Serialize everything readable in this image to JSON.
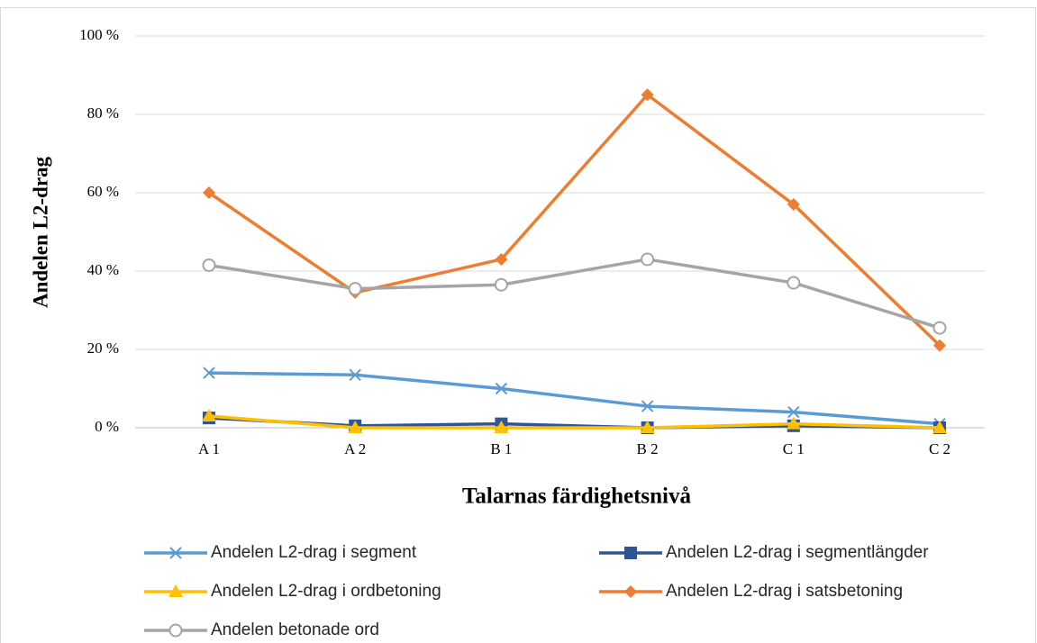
{
  "chart_data": {
    "type": "line",
    "x_label": "Talarnas färdighetsnivå",
    "y_label": "Andelen L2-drag",
    "categories": [
      "A 1",
      "A 2",
      "B 1",
      "B 2",
      "C 1",
      "C 2"
    ],
    "series": [
      {
        "name": "Andelen L2-drag i segment",
        "color": "#5b9bd5",
        "marker": "x",
        "values": [
          14,
          13.5,
          10,
          5.5,
          4,
          1
        ]
      },
      {
        "name": "Andelen L2-drag i segmentlängder",
        "color": "#2f5597",
        "marker": "square",
        "values": [
          2.5,
          0.5,
          1,
          0,
          0.5,
          0
        ]
      },
      {
        "name": "Andelen L2-drag i ordbetoning",
        "color": "#ffc000",
        "marker": "triangle",
        "values": [
          3,
          0,
          0,
          0,
          1,
          0
        ]
      },
      {
        "name": "Andelen L2-drag i satsbetoning",
        "color": "#ed7d31",
        "marker": "diamond",
        "values": [
          60,
          34.5,
          43,
          85,
          57,
          21
        ]
      },
      {
        "name": "Andelen betonade ord",
        "color": "#a5a5a5",
        "marker": "circle",
        "values": [
          41.5,
          35.5,
          36.5,
          43,
          37,
          25.5
        ]
      }
    ],
    "ylim": [
      0,
      100
    ],
    "yticks": [
      {
        "value": 0,
        "label": "0 %"
      },
      {
        "value": 20,
        "label": "20 %"
      },
      {
        "value": 40,
        "label": "40 %"
      },
      {
        "value": 60,
        "label": "60 %"
      },
      {
        "value": 80,
        "label": "80 %"
      },
      {
        "value": 100,
        "label": "100 %"
      }
    ],
    "grid": true,
    "legend": "bottom"
  }
}
